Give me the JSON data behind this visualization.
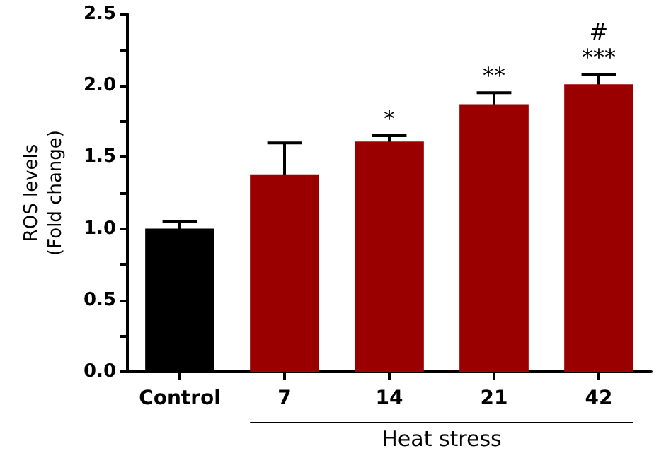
{
  "chart_data": {
    "type": "bar",
    "categories": [
      "Control",
      "7",
      "14",
      "21",
      "42"
    ],
    "values": [
      1.0,
      1.38,
      1.61,
      1.87,
      2.01
    ],
    "errors": [
      0.05,
      0.22,
      0.04,
      0.08,
      0.07
    ],
    "colors": [
      "#000000",
      "#9b0000",
      "#9b0000",
      "#9b0000",
      "#9b0000"
    ],
    "ylabel": "ROS levels\n(Fold change)",
    "xlabel": "Heat stress",
    "ylim": [
      0,
      2.5
    ],
    "yticks": [
      {
        "value": 0,
        "label": "0.0"
      },
      {
        "value": 0.25,
        "label": null
      },
      0.5,
      {
        "value": 0.75,
        "label": null
      },
      {
        "value": 1,
        "label": "1.0"
      },
      {
        "value": 1.25,
        "label": null
      },
      1.5,
      {
        "value": 1.75,
        "label": null
      },
      {
        "value": 2,
        "label": "2.0"
      },
      {
        "value": 2.25,
        "label": null
      },
      2.5
    ],
    "annotations": [
      {
        "text": "*",
        "x": "14",
        "y": 1.61
      },
      {
        "text": "**",
        "x": "21",
        "y": 1.87
      },
      {
        "text": "***",
        "x": "42",
        "y": 2.01
      },
      {
        "text": "#",
        "x": "42",
        "y": 2.01
      }
    ]
  }
}
